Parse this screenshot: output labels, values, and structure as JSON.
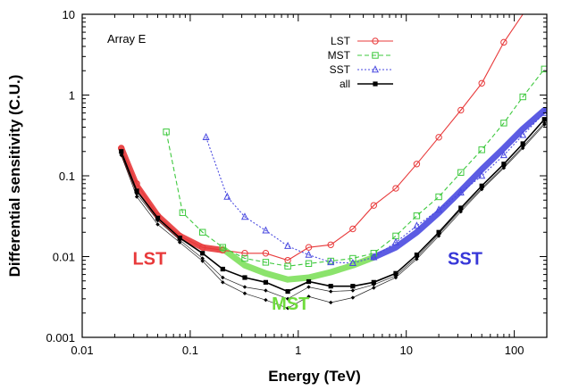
{
  "chart_data": {
    "type": "line",
    "xlabel": "Energy (TeV)",
    "ylabel": "Differential sensitivity (C.U.)",
    "xscale": "log",
    "yscale": "log",
    "xlim": [
      0.01,
      200
    ],
    "ylim": [
      0.001,
      10
    ],
    "x_ticks": [
      {
        "v": 0.01,
        "label": "0.01"
      },
      {
        "v": 0.1,
        "label": "0.1"
      },
      {
        "v": 1,
        "label": "1"
      },
      {
        "v": 10,
        "label": "10"
      },
      {
        "v": 100,
        "label": "100"
      }
    ],
    "y_ticks": [
      {
        "v": 0.001,
        "label": "0.001"
      },
      {
        "v": 0.01,
        "label": "0.01"
      },
      {
        "v": 0.1,
        "label": "0.1"
      },
      {
        "v": 1,
        "label": "1"
      },
      {
        "v": 10,
        "label": "10"
      }
    ],
    "annotation": "Array E",
    "legend": {
      "position": "top-right"
    },
    "series": [
      {
        "name": "LST",
        "color": "#e8393a",
        "marker": "circle",
        "dash": "solid",
        "x": [
          0.023,
          0.032,
          0.05,
          0.08,
          0.13,
          0.2,
          0.32,
          0.5,
          0.8,
          1.25,
          2,
          3.2,
          5,
          8,
          12.5,
          20,
          32,
          50,
          80,
          120
        ],
        "y": [
          0.22,
          0.08,
          0.032,
          0.018,
          0.013,
          0.012,
          0.011,
          0.011,
          0.009,
          0.013,
          0.014,
          0.022,
          0.043,
          0.07,
          0.14,
          0.3,
          0.65,
          1.4,
          4.5,
          14
        ]
      },
      {
        "name": "MST",
        "color": "#3ec93e",
        "marker": "square",
        "dash": "dashed",
        "x": [
          0.06,
          0.085,
          0.13,
          0.2,
          0.32,
          0.5,
          0.8,
          1.25,
          2,
          3.2,
          5,
          8,
          12.5,
          20,
          32,
          50,
          80,
          120,
          190
        ],
        "y": [
          0.35,
          0.035,
          0.02,
          0.013,
          0.0095,
          0.0085,
          0.0076,
          0.0082,
          0.0088,
          0.0095,
          0.011,
          0.018,
          0.032,
          0.055,
          0.11,
          0.21,
          0.45,
          0.95,
          2.1
        ]
      },
      {
        "name": "SST",
        "color": "#4a4ae0",
        "marker": "triangle",
        "dash": "dotted",
        "x": [
          0.14,
          0.22,
          0.32,
          0.5,
          0.8,
          1.25,
          2,
          3.2,
          5,
          8,
          12.5,
          20,
          32,
          50,
          80,
          120,
          190
        ],
        "y": [
          0.3,
          0.055,
          0.031,
          0.021,
          0.0135,
          0.0105,
          0.0085,
          0.0083,
          0.0098,
          0.015,
          0.024,
          0.038,
          0.062,
          0.1,
          0.18,
          0.32,
          0.6
        ]
      },
      {
        "name": "all",
        "color": "#000000",
        "marker": "filled-square",
        "dash": "solid",
        "x": [
          0.023,
          0.032,
          0.05,
          0.08,
          0.13,
          0.2,
          0.32,
          0.5,
          0.8,
          1.25,
          2,
          3.2,
          5,
          8,
          12.5,
          20,
          32,
          50,
          80,
          120,
          190
        ],
        "y": [
          0.2,
          0.065,
          0.03,
          0.017,
          0.011,
          0.007,
          0.0055,
          0.0048,
          0.0037,
          0.0049,
          0.0043,
          0.0043,
          0.0048,
          0.0062,
          0.0105,
          0.02,
          0.04,
          0.075,
          0.14,
          0.25,
          0.5
        ]
      }
    ],
    "thin_black_curves": [
      {
        "x": [
          0.023,
          0.032,
          0.05,
          0.08,
          0.13,
          0.2,
          0.32,
          0.5,
          0.8,
          1.25,
          2,
          3.2,
          5,
          8,
          12.5,
          20,
          32,
          50,
          80,
          120,
          190
        ],
        "y": [
          0.19,
          0.06,
          0.028,
          0.016,
          0.0095,
          0.0055,
          0.0042,
          0.0038,
          0.003,
          0.0042,
          0.0037,
          0.0038,
          0.0045,
          0.0058,
          0.0098,
          0.019,
          0.038,
          0.07,
          0.13,
          0.23,
          0.45
        ]
      },
      {
        "x": [
          0.023,
          0.032,
          0.05,
          0.08,
          0.13,
          0.2,
          0.32,
          0.5,
          0.8,
          1.25,
          2,
          3.2,
          5,
          8,
          12.5,
          20,
          32,
          50,
          80,
          120,
          190
        ],
        "y": [
          0.18,
          0.055,
          0.025,
          0.015,
          0.0088,
          0.0048,
          0.0035,
          0.0029,
          0.0023,
          0.0032,
          0.0027,
          0.0031,
          0.0041,
          0.0055,
          0.0093,
          0.018,
          0.036,
          0.068,
          0.125,
          0.22,
          0.43
        ]
      }
    ],
    "bands": [
      {
        "label": "LST",
        "color": "#e8393a",
        "x": [
          0.023,
          0.032,
          0.05,
          0.08,
          0.13,
          0.2
        ],
        "y": [
          0.22,
          0.075,
          0.032,
          0.018,
          0.013,
          0.012
        ]
      },
      {
        "label": "MST",
        "color": "#7ee05c",
        "x": [
          0.2,
          0.32,
          0.5,
          0.8,
          1.25,
          2,
          3.2,
          5
        ],
        "y": [
          0.0125,
          0.0078,
          0.0062,
          0.0052,
          0.0055,
          0.0064,
          0.0078,
          0.0098
        ]
      },
      {
        "label": "SST",
        "color": "#4a4ae0",
        "x": [
          5,
          8,
          12.5,
          20,
          32,
          50,
          80,
          120,
          190
        ],
        "y": [
          0.0098,
          0.013,
          0.02,
          0.035,
          0.065,
          0.12,
          0.22,
          0.38,
          0.65
        ]
      }
    ],
    "region_labels": [
      {
        "text": "LST",
        "color": "#e8393a",
        "x": 0.042,
        "y": 0.008
      },
      {
        "text": "MST",
        "color": "#6fdc3c",
        "x": 0.85,
        "y": 0.0022
      },
      {
        "text": "SST",
        "color": "#3737d8",
        "x": 35,
        "y": 0.008
      }
    ]
  }
}
